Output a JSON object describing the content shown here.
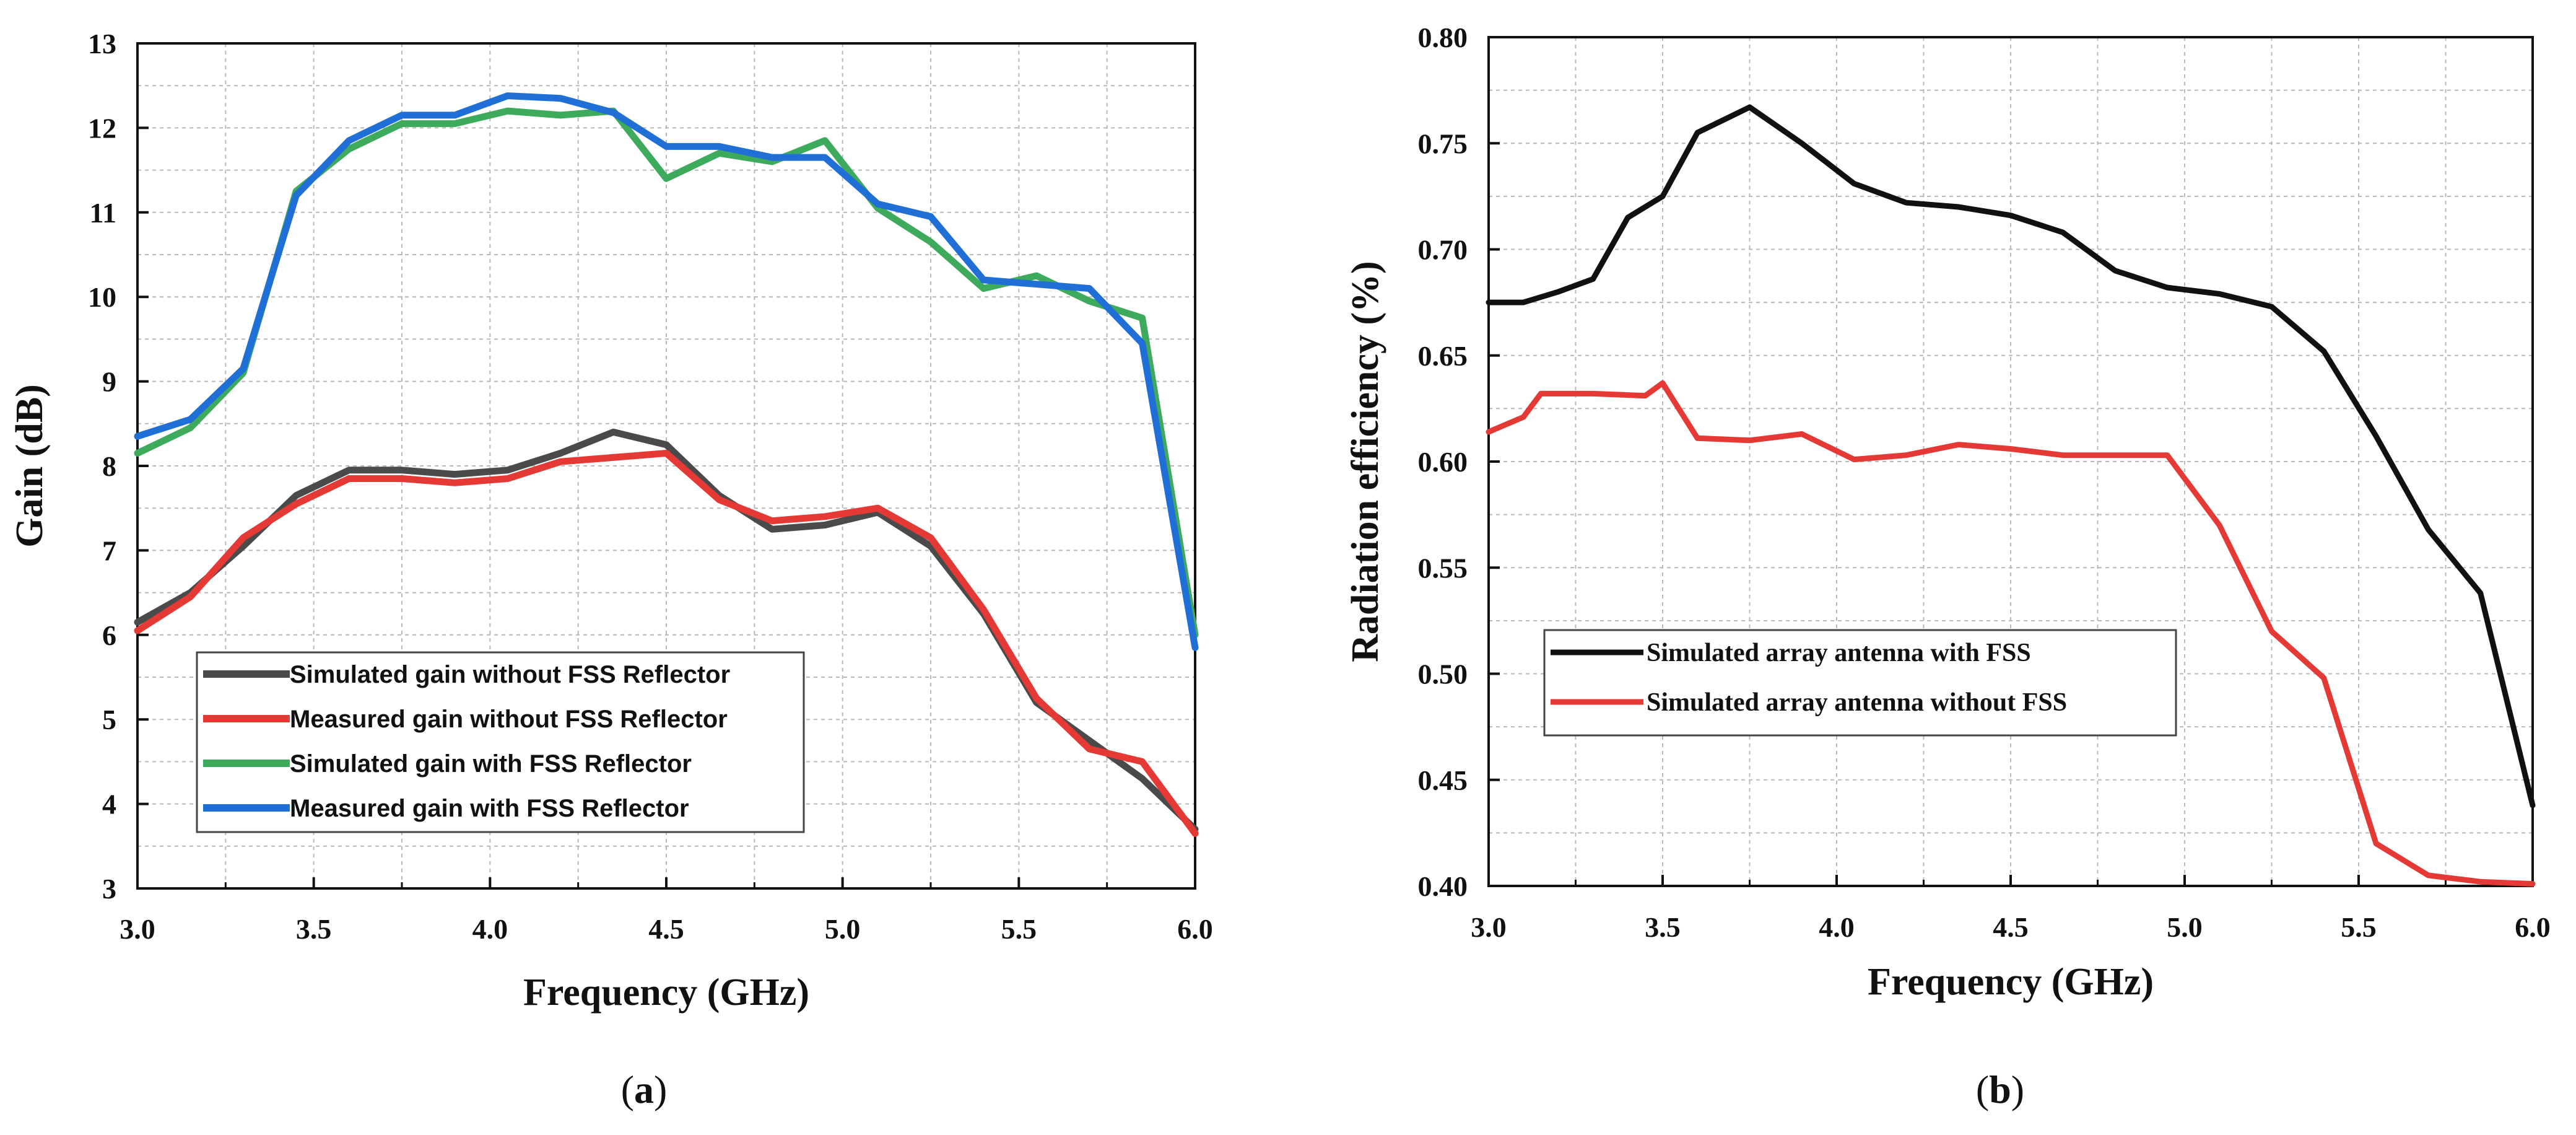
{
  "chart_data": [
    {
      "type": "line",
      "panel_label": "a",
      "xlabel": "Frequency (GHz)",
      "ylabel": "Gain (dB)",
      "xlim": [
        3.0,
        6.0
      ],
      "ylim": [
        3,
        13
      ],
      "xticks": [
        "3.0",
        "3.5",
        "4.0",
        "4.5",
        "5.0",
        "5.5",
        "6.0"
      ],
      "yticks": [
        "3",
        "4",
        "5",
        "6",
        "7",
        "8",
        "9",
        "10",
        "11",
        "12",
        "13"
      ],
      "grid": true,
      "legend_position": "bottom-left",
      "x": [
        3.0,
        3.15,
        3.3,
        3.45,
        3.6,
        3.75,
        3.9,
        4.05,
        4.2,
        4.35,
        4.5,
        4.65,
        4.8,
        4.95,
        5.1,
        5.25,
        5.4,
        5.55,
        5.7,
        5.85,
        6.0
      ],
      "series": [
        {
          "name": "Simulated gain without FSS Reflector",
          "color": "#4a4a4a",
          "values": [
            6.15,
            6.5,
            7.05,
            7.65,
            7.95,
            7.95,
            7.9,
            7.95,
            8.15,
            8.4,
            8.25,
            7.65,
            7.25,
            7.3,
            7.45,
            7.05,
            6.25,
            5.2,
            4.75,
            4.3,
            3.7
          ]
        },
        {
          "name": "Measured gain without FSS Reflector",
          "color": "#e53935",
          "values": [
            6.05,
            6.45,
            7.15,
            7.55,
            7.85,
            7.85,
            7.8,
            7.85,
            8.05,
            8.1,
            8.15,
            7.6,
            7.35,
            7.4,
            7.5,
            7.15,
            6.3,
            5.25,
            4.65,
            4.5,
            3.65
          ]
        },
        {
          "name": "Simulated gain with FSS Reflector",
          "color": "#3daa5c",
          "values": [
            8.15,
            8.45,
            9.1,
            11.25,
            11.75,
            12.05,
            12.05,
            12.2,
            12.15,
            12.2,
            11.4,
            11.7,
            11.6,
            11.85,
            11.05,
            10.65,
            10.1,
            10.25,
            9.95,
            9.75,
            6.0
          ]
        },
        {
          "name": "Measured gain with FSS Reflector",
          "color": "#1f6fd6",
          "values": [
            8.35,
            8.55,
            9.15,
            11.2,
            11.85,
            12.15,
            12.15,
            12.38,
            12.35,
            12.18,
            11.78,
            11.78,
            11.65,
            11.65,
            11.1,
            10.95,
            10.2,
            10.15,
            10.1,
            9.45,
            5.85
          ]
        }
      ]
    },
    {
      "type": "line",
      "panel_label": "b",
      "xlabel": "Frequency (GHz)",
      "ylabel": "Radiation efficiency (%)",
      "xlim": [
        3.0,
        6.0
      ],
      "ylim": [
        0.4,
        0.8
      ],
      "xticks": [
        "3.0",
        "3.5",
        "4.0",
        "4.5",
        "5.0",
        "5.5",
        "6.0"
      ],
      "yticks": [
        "0.40",
        "0.45",
        "0.50",
        "0.55",
        "0.60",
        "0.65",
        "0.70",
        "0.75",
        "0.80"
      ],
      "grid": true,
      "legend_position": "bottom-left",
      "series": [
        {
          "name": "Simulated array antenna with FSS",
          "color": "#111111",
          "x": [
            3.0,
            3.1,
            3.2,
            3.3,
            3.4,
            3.5,
            3.6,
            3.75,
            3.9,
            4.05,
            4.2,
            4.35,
            4.5,
            4.65,
            4.8,
            4.95,
            5.1,
            5.25,
            5.4,
            5.55,
            5.7,
            5.85,
            6.0
          ],
          "values": [
            0.675,
            0.675,
            0.68,
            0.686,
            0.715,
            0.725,
            0.755,
            0.767,
            0.75,
            0.731,
            0.722,
            0.72,
            0.716,
            0.708,
            0.69,
            0.682,
            0.679,
            0.673,
            0.652,
            0.612,
            0.568,
            0.538,
            0.438
          ]
        },
        {
          "name": "Simulated array antenna without FSS",
          "color": "#e53935",
          "x": [
            3.0,
            3.1,
            3.15,
            3.3,
            3.45,
            3.5,
            3.6,
            3.75,
            3.9,
            4.05,
            4.2,
            4.35,
            4.5,
            4.65,
            4.8,
            4.95,
            5.1,
            5.25,
            5.4,
            5.55,
            5.7,
            5.85,
            6.0
          ],
          "values": [
            0.614,
            0.621,
            0.632,
            0.632,
            0.631,
            0.637,
            0.611,
            0.61,
            0.613,
            0.601,
            0.603,
            0.608,
            0.606,
            0.603,
            0.603,
            0.603,
            0.57,
            0.52,
            0.498,
            0.42,
            0.405,
            0.402,
            0.401
          ]
        }
      ]
    }
  ]
}
